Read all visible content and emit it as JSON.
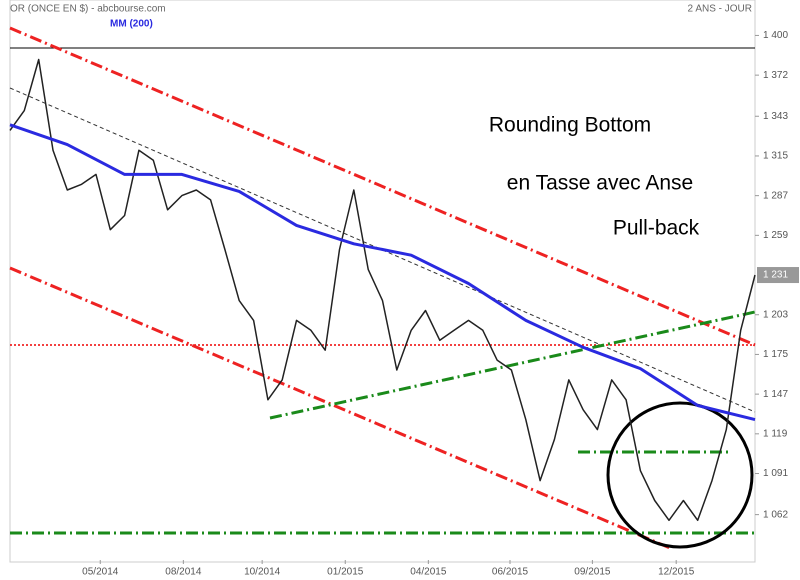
{
  "chart_data": {
    "type": "line",
    "title": "OR (ONCE EN $) - abcbourse.com",
    "subtitle": "2 ANS - JOUR",
    "annotations": [
      "Rounding Bottom",
      "en Tasse avec Anse",
      "Pull-back"
    ],
    "xlim": [
      0,
      104
    ],
    "xticks": [
      {
        "value": 12.6,
        "label": "05/2014"
      },
      {
        "value": 24.2,
        "label": "08/2014"
      },
      {
        "value": 35.2,
        "label": "10/2014"
      },
      {
        "value": 46.8,
        "label": "01/2015"
      },
      {
        "value": 58.4,
        "label": "04/2015"
      },
      {
        "value": 69.8,
        "label": "06/2015"
      },
      {
        "value": 81.3,
        "label": "09/2015"
      },
      {
        "value": 93.0,
        "label": "12/2015"
      }
    ],
    "ylim": [
      1030,
      1425
    ],
    "yticks": [
      {
        "value": 1400,
        "label": "1 400"
      },
      {
        "value": 1372,
        "label": "1 372"
      },
      {
        "value": 1343,
        "label": "1 343"
      },
      {
        "value": 1315,
        "label": "1 315"
      },
      {
        "value": 1287,
        "label": "1 287"
      },
      {
        "value": 1259,
        "label": "1 259"
      },
      {
        "value": 1203,
        "label": "1 203"
      },
      {
        "value": 1175,
        "label": "1 175"
      },
      {
        "value": 1147,
        "label": "1 147"
      },
      {
        "value": 1119,
        "label": "1 119"
      },
      {
        "value": 1091,
        "label": "1 091"
      },
      {
        "value": 1062,
        "label": "1 062"
      }
    ],
    "current": {
      "value": 1231,
      "label": "1 231"
    },
    "series": [
      {
        "color": "#222222",
        "x": [
          0,
          2,
          4,
          6,
          8,
          10,
          12,
          14,
          16,
          18,
          20,
          22,
          24,
          26,
          28,
          30,
          32,
          34,
          36,
          38,
          40,
          42,
          44,
          46,
          48,
          50,
          52,
          54,
          56,
          58,
          60,
          62,
          64,
          66,
          68,
          70,
          72,
          74,
          76,
          78,
          80,
          82,
          84,
          86,
          88,
          90,
          92,
          94,
          96,
          98,
          100,
          102,
          104
        ],
        "values": [
          1333,
          1347,
          1383,
          1319,
          1291,
          1295,
          1302,
          1263,
          1273,
          1319,
          1312,
          1277,
          1287,
          1291,
          1284,
          1249,
          1213,
          1199,
          1143,
          1157,
          1199,
          1192,
          1178,
          1249,
          1291,
          1235,
          1213,
          1164,
          1192,
          1206,
          1185,
          1192,
          1199,
          1192,
          1171,
          1164,
          1129,
          1086,
          1115,
          1157,
          1136,
          1122,
          1157,
          1143,
          1093,
          1072,
          1058,
          1072,
          1058,
          1086,
          1122,
          1192,
          1231
        ]
      },
      {
        "name": "MM (200)",
        "color": "#2a2ae0",
        "x": [
          0,
          8,
          16,
          24,
          32,
          40,
          48,
          56,
          64,
          72,
          80,
          88,
          96,
          104
        ],
        "values": [
          1337,
          1323,
          1302,
          1302,
          1290,
          1266,
          1253,
          1245,
          1225,
          1199,
          1180,
          1165,
          1139,
          1129
        ]
      }
    ]
  }
}
